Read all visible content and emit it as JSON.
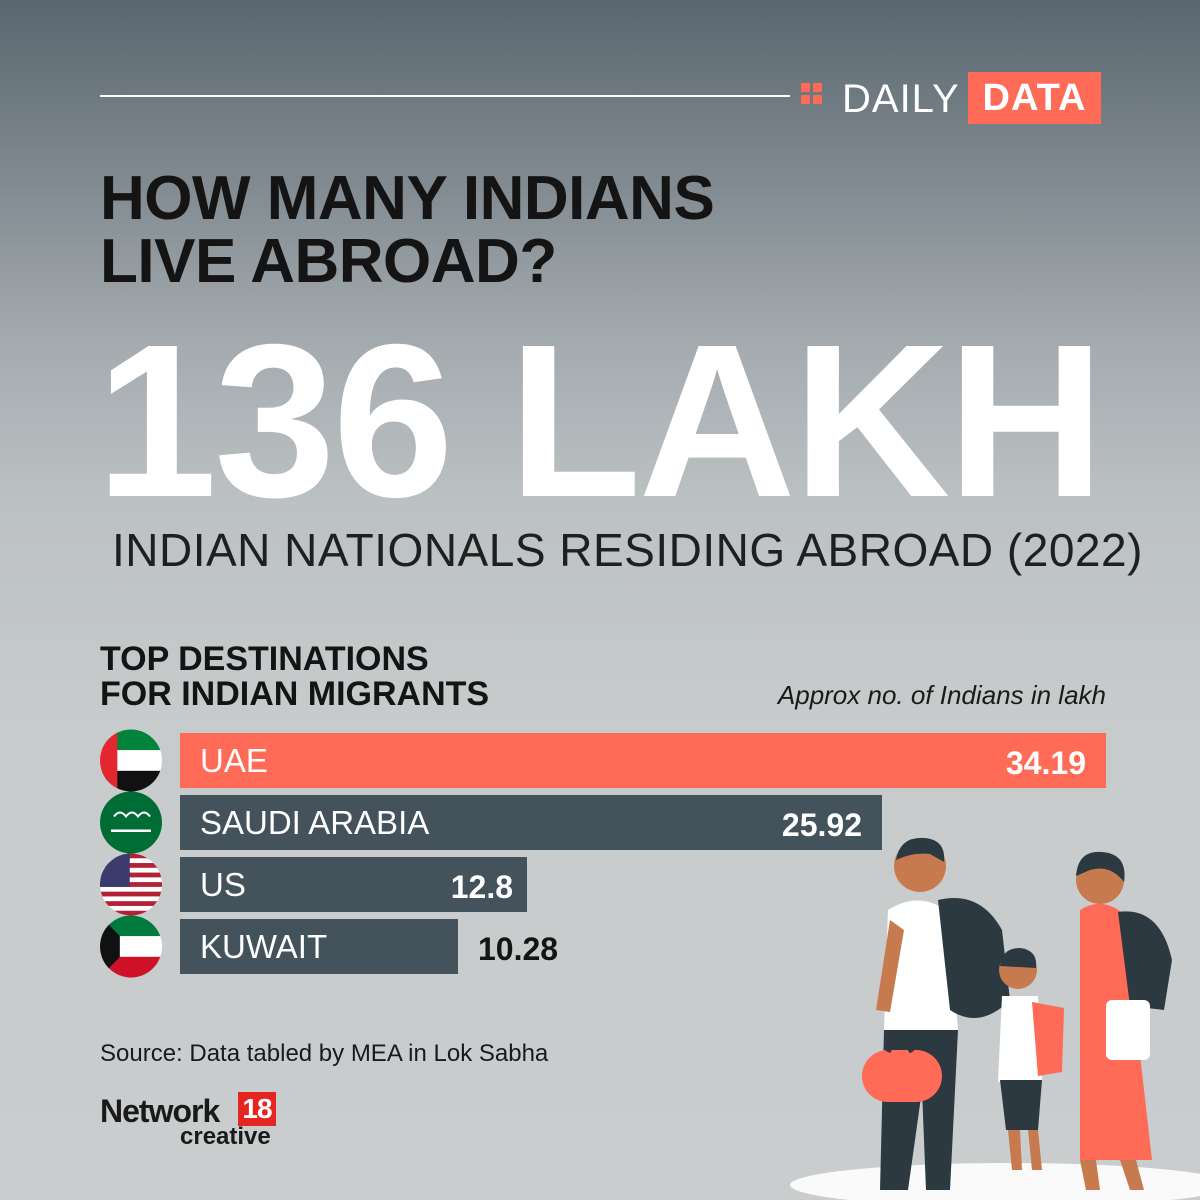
{
  "brand": {
    "daily": "DAILY",
    "data": "DATA",
    "accent_color": "#ff6b57"
  },
  "headline": {
    "line1": "HOW MANY INDIANS",
    "line2": "LIVE ABROAD?"
  },
  "big_number": "136 LAKH",
  "subtitle": "INDIAN NATIONALS RESIDING ABROAD (2022)",
  "section": {
    "title_line1": "TOP DESTINATIONS",
    "title_line2": "FOR INDIAN MIGRANTS",
    "units": "Approx no. of Indians in lakh"
  },
  "chart_data": {
    "type": "bar",
    "orientation": "horizontal",
    "categories": [
      "UAE",
      "SAUDI ARABIA",
      "US",
      "KUWAIT"
    ],
    "values": [
      34.19,
      25.92,
      12.8,
      10.28
    ],
    "value_labels": [
      "34.19",
      "25.92",
      "12.8",
      "10.28"
    ],
    "flags": [
      "uae-flag-icon",
      "saudi-flag-icon",
      "us-flag-icon",
      "kuwait-flag-icon"
    ],
    "colors": [
      "#ff6b57",
      "#43525b",
      "#43525b",
      "#43525b"
    ],
    "xlim": [
      0,
      34.19
    ],
    "grid": false
  },
  "source": "Source: Data tabled by MEA in Lok Sabha",
  "logo": {
    "word": "Network",
    "number": "18",
    "sub": "creative"
  }
}
